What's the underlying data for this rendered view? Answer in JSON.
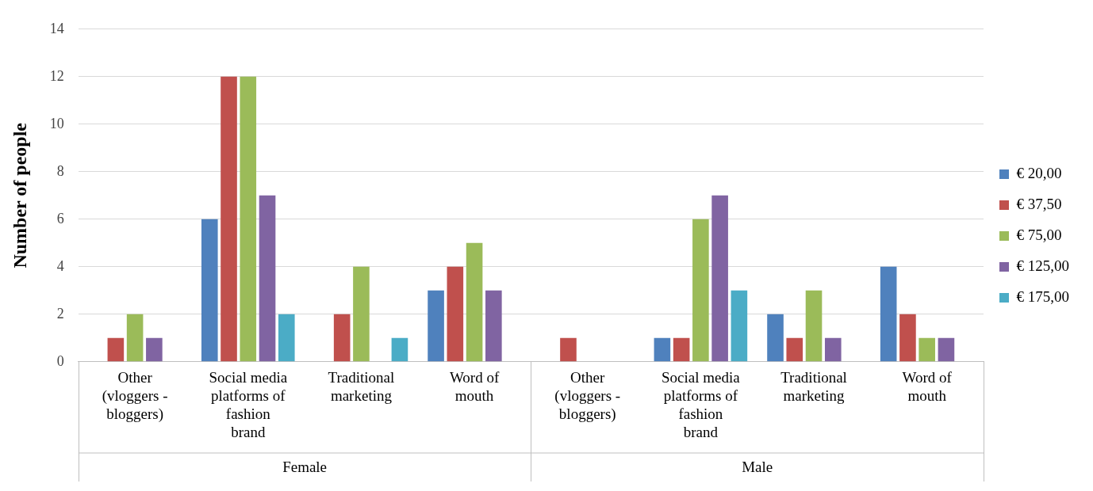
{
  "chart_data": {
    "type": "bar",
    "ylabel": "Number of people",
    "categories": [
      "Other (vloggers - bloggers)",
      "Social media platforms of fashion brand",
      "Traditional marketing",
      "Word of mouth",
      "Other (vloggers - bloggers)",
      "Social media platforms of fashion brand",
      "Traditional marketing",
      "Word of mouth"
    ],
    "series": [
      {
        "name": "€ 20,00",
        "color": "#4f81bd",
        "values": [
          0,
          6,
          0,
          3,
          0,
          1,
          2,
          4
        ]
      },
      {
        "name": "€ 37,50",
        "color": "#c0504d",
        "values": [
          1,
          12,
          2,
          4,
          1,
          1,
          1,
          2
        ]
      },
      {
        "name": "€ 75,00",
        "color": "#9bbb59",
        "values": [
          2,
          12,
          4,
          5,
          0,
          6,
          3,
          1
        ]
      },
      {
        "name": "€ 125,00",
        "color": "#8064a2",
        "values": [
          1,
          7,
          0,
          3,
          0,
          7,
          1,
          1
        ]
      },
      {
        "name": "€ 175,00",
        "color": "#4bacc6",
        "values": [
          0,
          2,
          1,
          0,
          0,
          3,
          0,
          0
        ]
      }
    ],
    "annotations": [
      "Female",
      "Male"
    ],
    "ylim": [
      0,
      14
    ],
    "yticks": [
      0,
      2,
      4,
      6,
      8,
      10,
      12,
      14
    ],
    "grid": "y",
    "legend": "right"
  }
}
